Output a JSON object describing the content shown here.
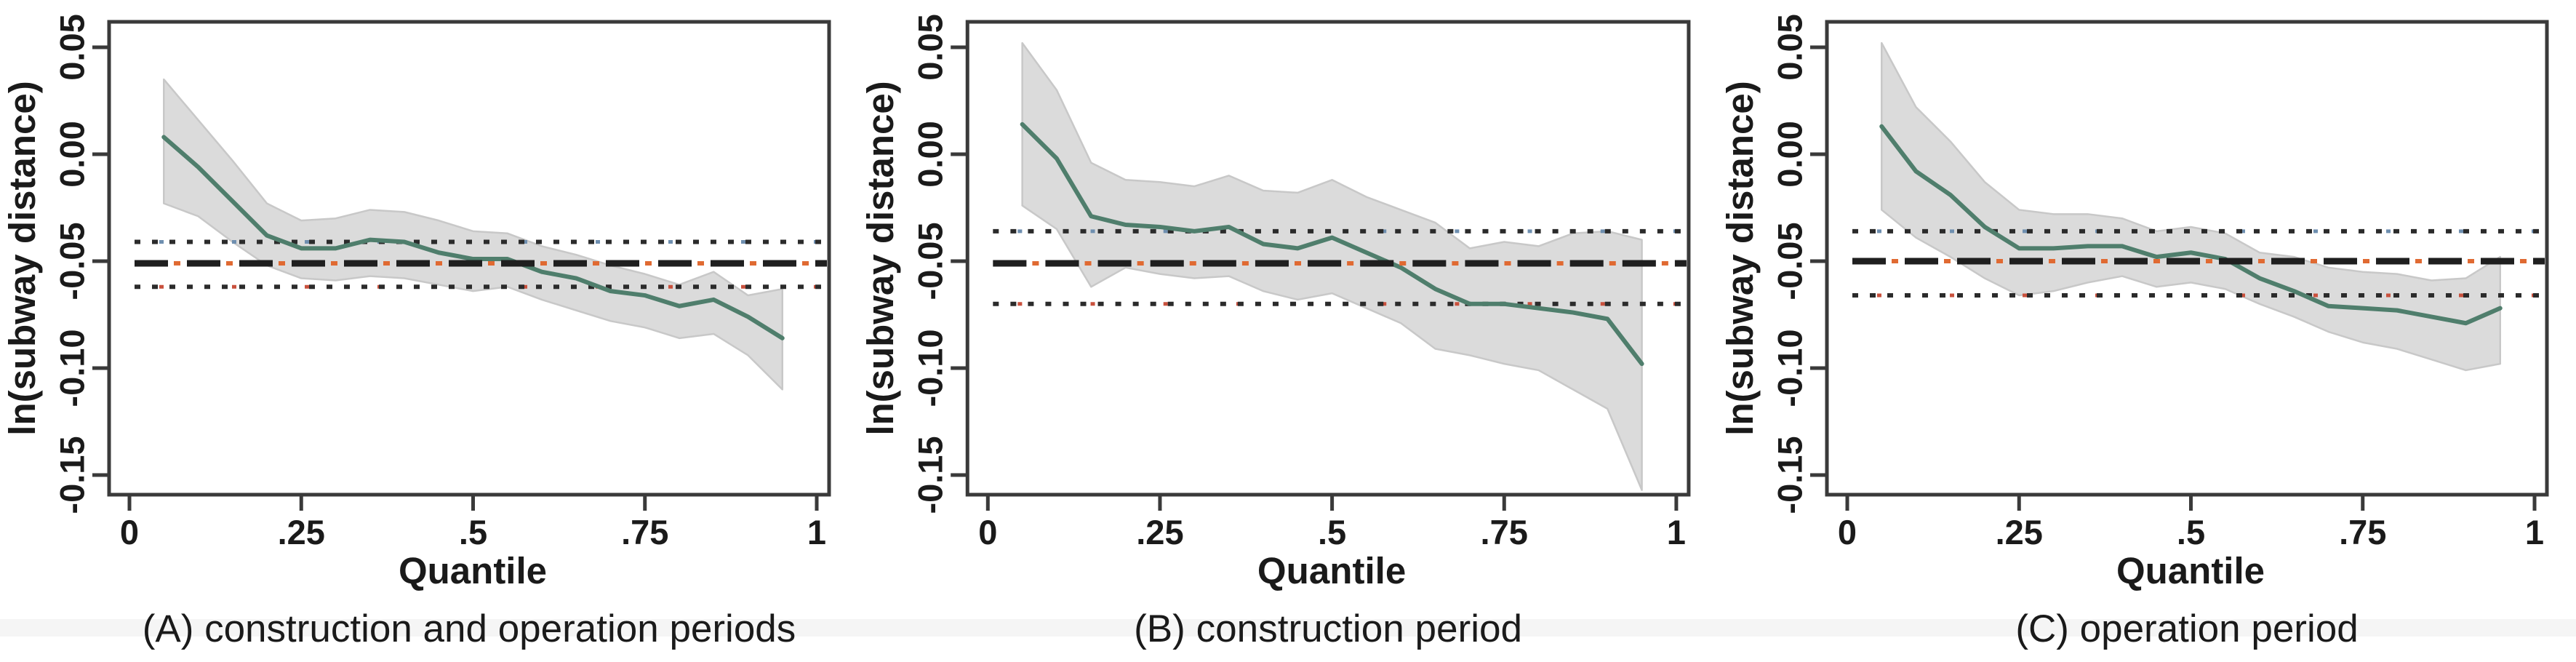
{
  "figure": {
    "kind": "three-panel quantile regression figure",
    "xlabel": "Quantile",
    "ylabel": "ln(subway distance)",
    "x_ticks": {
      "labels": [
        "0",
        ".25",
        ".5",
        ".75",
        "1"
      ],
      "values": [
        0,
        0.25,
        0.5,
        0.75,
        1
      ]
    },
    "y_ticks": {
      "labels": [
        "0.05",
        "0.00",
        "-0.05",
        "-0.10",
        "-0.15"
      ],
      "values": [
        0.05,
        0.0,
        -0.05,
        -0.1,
        -0.15
      ]
    },
    "colors": {
      "estimate_line": "#4f7e6c",
      "confidence_band": "#dbdbdb",
      "confidence_band_edge": "#c8c8c8",
      "ols_dashed": "#1f1f1f",
      "ols_dash_accent": "#e06a32",
      "ci_dotted": "#2b2b2b",
      "ci_dot_accent_upper": "#6f8fb0",
      "ci_dot_accent_lower": "#c9513d",
      "axis": "#3a3a3a",
      "text": "#1a1a1a"
    }
  },
  "chart_data": [
    {
      "type": "line",
      "title": "(A) construction and operation periods",
      "xlabel": "Quantile",
      "ylabel": "ln(subway distance)",
      "xlim": [
        0,
        1
      ],
      "ylim": [
        -0.159,
        0.061
      ],
      "grid": false,
      "legend": "none",
      "x": [
        0.05,
        0.1,
        0.15,
        0.2,
        0.25,
        0.3,
        0.35,
        0.4,
        0.45,
        0.5,
        0.55,
        0.6,
        0.65,
        0.7,
        0.75,
        0.8,
        0.85,
        0.9,
        0.95
      ],
      "series": [
        {
          "name": "quantile regression estimate",
          "values": [
            0.008,
            -0.006,
            -0.022,
            -0.038,
            -0.044,
            -0.044,
            -0.04,
            -0.041,
            -0.046,
            -0.049,
            -0.049,
            -0.055,
            -0.058,
            -0.064,
            -0.066,
            -0.071,
            -0.068,
            -0.076,
            -0.086
          ]
        },
        {
          "name": "confidence band upper",
          "values": [
            0.035,
            0.016,
            -0.003,
            -0.023,
            -0.031,
            -0.03,
            -0.026,
            -0.027,
            -0.031,
            -0.036,
            -0.037,
            -0.043,
            -0.047,
            -0.052,
            -0.056,
            -0.061,
            -0.055,
            -0.066,
            -0.063
          ]
        },
        {
          "name": "confidence band lower",
          "values": [
            -0.023,
            -0.029,
            -0.041,
            -0.052,
            -0.058,
            -0.059,
            -0.057,
            -0.058,
            -0.061,
            -0.064,
            -0.062,
            -0.068,
            -0.073,
            -0.078,
            -0.081,
            -0.086,
            -0.084,
            -0.094,
            -0.11
          ]
        }
      ],
      "ols_estimate": -0.051,
      "ols_ci": [
        -0.062,
        -0.041
      ]
    },
    {
      "type": "line",
      "title": "(B) construction period",
      "xlabel": "Quantile",
      "ylabel": "ln(subway distance)",
      "xlim": [
        0,
        1
      ],
      "ylim": [
        -0.159,
        0.061
      ],
      "grid": false,
      "legend": "none",
      "x": [
        0.05,
        0.1,
        0.15,
        0.2,
        0.25,
        0.3,
        0.35,
        0.4,
        0.45,
        0.5,
        0.55,
        0.6,
        0.65,
        0.7,
        0.75,
        0.8,
        0.85,
        0.9,
        0.95
      ],
      "series": [
        {
          "name": "quantile regression estimate",
          "values": [
            0.014,
            -0.002,
            -0.029,
            -0.033,
            -0.034,
            -0.036,
            -0.034,
            -0.042,
            -0.044,
            -0.039,
            -0.046,
            -0.053,
            -0.063,
            -0.07,
            -0.07,
            -0.072,
            -0.074,
            -0.077,
            -0.098
          ]
        },
        {
          "name": "confidence band upper",
          "values": [
            0.052,
            0.03,
            -0.004,
            -0.012,
            -0.013,
            -0.015,
            -0.01,
            -0.017,
            -0.018,
            -0.012,
            -0.02,
            -0.026,
            -0.032,
            -0.044,
            -0.041,
            -0.043,
            -0.037,
            -0.036,
            -0.04
          ]
        },
        {
          "name": "confidence band lower",
          "values": [
            -0.024,
            -0.035,
            -0.062,
            -0.053,
            -0.056,
            -0.058,
            -0.057,
            -0.064,
            -0.068,
            -0.065,
            -0.072,
            -0.079,
            -0.091,
            -0.094,
            -0.098,
            -0.101,
            -0.11,
            -0.119,
            -0.157
          ]
        }
      ],
      "ols_estimate": -0.051,
      "ols_ci": [
        -0.07,
        -0.036
      ]
    },
    {
      "type": "line",
      "title": "(C) operation period",
      "xlabel": "Quantile",
      "ylabel": "ln(subway distance)",
      "xlim": [
        0,
        1
      ],
      "ylim": [
        -0.159,
        0.061
      ],
      "grid": false,
      "legend": "none",
      "x": [
        0.05,
        0.1,
        0.15,
        0.2,
        0.25,
        0.3,
        0.35,
        0.4,
        0.45,
        0.5,
        0.55,
        0.6,
        0.65,
        0.7,
        0.75,
        0.8,
        0.85,
        0.9,
        0.95
      ],
      "series": [
        {
          "name": "quantile regression estimate",
          "values": [
            0.013,
            -0.008,
            -0.019,
            -0.034,
            -0.044,
            -0.044,
            -0.043,
            -0.043,
            -0.048,
            -0.046,
            -0.049,
            -0.058,
            -0.064,
            -0.071,
            -0.072,
            -0.073,
            -0.076,
            -0.079,
            -0.072
          ]
        },
        {
          "name": "confidence band upper",
          "values": [
            0.052,
            0.022,
            0.006,
            -0.013,
            -0.026,
            -0.028,
            -0.028,
            -0.03,
            -0.036,
            -0.034,
            -0.037,
            -0.046,
            -0.048,
            -0.053,
            -0.055,
            -0.056,
            -0.059,
            -0.058,
            -0.048
          ]
        },
        {
          "name": "confidence band lower",
          "values": [
            -0.026,
            -0.039,
            -0.048,
            -0.058,
            -0.066,
            -0.064,
            -0.06,
            -0.057,
            -0.062,
            -0.06,
            -0.063,
            -0.07,
            -0.076,
            -0.083,
            -0.088,
            -0.091,
            -0.096,
            -0.101,
            -0.098
          ]
        }
      ],
      "ols_estimate": -0.05,
      "ols_ci": [
        -0.066,
        -0.036
      ]
    }
  ]
}
